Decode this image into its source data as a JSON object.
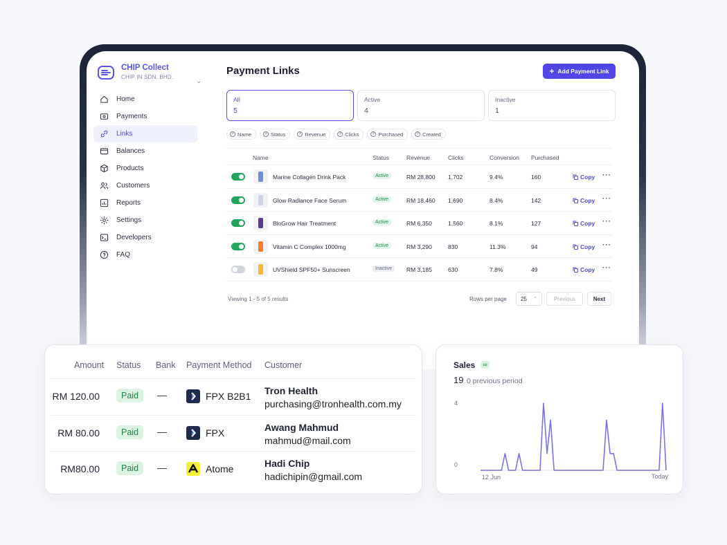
{
  "brand": {
    "name": "CHIP Collect",
    "company": "CHIP IN SDN. BHD."
  },
  "nav": [
    {
      "label": "Home",
      "icon": "home-icon"
    },
    {
      "label": "Payments",
      "icon": "payments-icon"
    },
    {
      "label": "Links",
      "icon": "link-icon",
      "active": true
    },
    {
      "label": "Balances",
      "icon": "wallet-icon"
    },
    {
      "label": "Products",
      "icon": "box-icon"
    },
    {
      "label": "Customers",
      "icon": "users-icon"
    },
    {
      "label": "Reports",
      "icon": "chart-icon"
    },
    {
      "label": "Settings",
      "icon": "gear-icon"
    },
    {
      "label": "Developers",
      "icon": "terminal-icon"
    },
    {
      "label": "FAQ",
      "icon": "help-icon"
    }
  ],
  "page": {
    "title": "Payment Links",
    "add_label": "Add Payment Link"
  },
  "tabs": [
    {
      "label": "All",
      "count": "5"
    },
    {
      "label": "Active",
      "count": "4"
    },
    {
      "label": "Inactive",
      "count": "1"
    }
  ],
  "filters": [
    "Name",
    "Status",
    "Revenue",
    "Clicks",
    "Purchased",
    "Created"
  ],
  "table": {
    "headers": {
      "name": "Name",
      "status": "Status",
      "revenue": "Revenue",
      "clicks": "Clicks",
      "conversion": "Conversion",
      "purchased": "Purchased"
    },
    "copy_label": "Copy",
    "rows": [
      {
        "name": "Marine Collagen Drink Pack",
        "status": "Active",
        "revenue": "RM 28,800",
        "clicks": "1,702",
        "conversion": "9.4%",
        "purchased": "160",
        "enabled": true,
        "thumb_color": "#6e8fd6"
      },
      {
        "name": "Glow Radiance Face Serum",
        "status": "Active",
        "revenue": "RM 18,460",
        "clicks": "1,690",
        "conversion": "8.4%",
        "purchased": "142",
        "enabled": true,
        "thumb_color": "#cfd3e6"
      },
      {
        "name": "BioGrow Hair Treatment",
        "status": "Active",
        "revenue": "RM 6,350",
        "clicks": "1,560",
        "conversion": "8.1%",
        "purchased": "127",
        "enabled": true,
        "thumb_color": "#5b3a8f"
      },
      {
        "name": "Vitamin C Complex 1000mg",
        "status": "Active",
        "revenue": "RM 3,290",
        "clicks": "830",
        "conversion": "11.3%",
        "purchased": "94",
        "enabled": true,
        "thumb_color": "#f07f2a"
      },
      {
        "name": "UVShield SPF50+ Sunscreen",
        "status": "Inactive",
        "revenue": "RM 3,185",
        "clicks": "630",
        "conversion": "7.8%",
        "purchased": "49",
        "enabled": false,
        "thumb_color": "#f5b82e"
      }
    ]
  },
  "pagination": {
    "viewing": "Viewing 1 - 5 of 5 results",
    "rows_label": "Rows per page",
    "rows_value": "25",
    "prev": "Previous",
    "next": "Next"
  },
  "transactions": {
    "headers": {
      "amount": "Amount",
      "status": "Status",
      "bank": "Bank",
      "method": "Payment Method",
      "customer": "Customer"
    },
    "rows": [
      {
        "amount": "RM 120.00",
        "status": "Paid",
        "bank": "—",
        "method": "FPX B2B1",
        "method_icon": "fpx-logo",
        "name": "Tron Health",
        "email": "purchasing@tronhealth.com.my"
      },
      {
        "amount": "RM 80.00",
        "status": "Paid",
        "bank": "—",
        "method": "FPX",
        "method_icon": "fpx-logo",
        "name": "Awang Mahmud",
        "email": "mahmud@mail.com"
      },
      {
        "amount": "RM80.00",
        "status": "Paid",
        "bank": "—",
        "method": "Atome",
        "method_icon": "atome-logo",
        "name": "Hadi Chip",
        "email": "hadichipin@gmail.com"
      }
    ]
  },
  "sales": {
    "title": "Sales",
    "badge": "∞",
    "total": "19",
    "previous": "0 previous period",
    "chart_data": {
      "type": "line",
      "title": "Sales",
      "x_start_label": "12 Jun",
      "x_end_label": "Today",
      "y_ticks": [
        "0",
        "4"
      ],
      "ylim": [
        0,
        4
      ],
      "values": [
        0,
        0,
        0,
        0,
        0,
        0,
        0,
        1,
        0,
        0,
        0,
        1,
        0,
        0,
        0,
        0,
        0,
        0,
        4,
        1,
        3,
        0,
        0,
        0,
        0,
        0,
        0,
        0,
        0,
        0,
        0,
        0,
        0,
        0,
        0,
        0,
        3,
        1,
        1,
        0,
        0,
        0,
        0,
        0,
        0,
        0,
        0,
        0,
        0,
        0,
        0,
        0,
        4,
        0
      ],
      "color": "#7b72e8"
    }
  },
  "colors": {
    "accent": "#4f46e5",
    "success": "#22a45d"
  }
}
